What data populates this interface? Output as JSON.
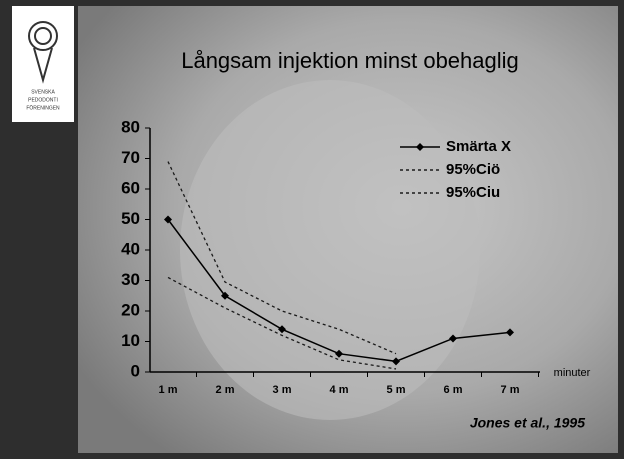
{
  "logo": {
    "lines": [
      "SVENSKA",
      "PEDODONTI",
      "FÖRENINGEN"
    ]
  },
  "chart_data": {
    "type": "line",
    "title": "Långsam injektion minst obehaglig",
    "categories": [
      "1 m",
      "2 m",
      "3 m",
      "4 m",
      "5 m",
      "6 m",
      "7 m"
    ],
    "x_label": "minuter",
    "series": [
      {
        "name": "Smärta X",
        "color": "#000000",
        "style": "solid",
        "marker": "diamond",
        "values": [
          50,
          25,
          14,
          6,
          3.5,
          11,
          13
        ]
      },
      {
        "name": "95%Ciö",
        "color": "#1a1a1a",
        "style": "dashed",
        "values": [
          69,
          29.5,
          20,
          14,
          6,
          null,
          null
        ]
      },
      {
        "name": "95%Ciu",
        "color": "#1a1a1a",
        "style": "dashed",
        "values": [
          31,
          21,
          12,
          4,
          1,
          null,
          null
        ]
      }
    ],
    "ylim": [
      0,
      80
    ],
    "yticks": [
      0,
      10,
      20,
      30,
      40,
      50,
      60,
      70,
      80
    ],
    "source": "Jones et al., 1995"
  }
}
